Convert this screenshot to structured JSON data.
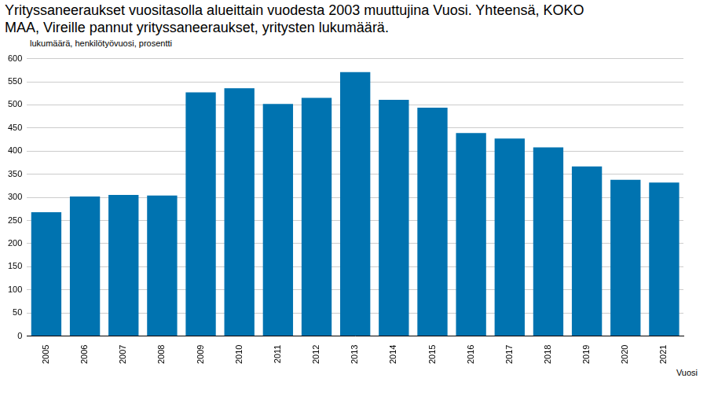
{
  "chart_data": {
    "type": "bar",
    "title": [
      "Yrityssaneeraukset vuositasolla alueittain vuodesta 2003 muuttujina Vuosi. Yhteensä, KOKO",
      "MAA, Vireille pannut yrityssaneeraukset, yritysten lukumäärä."
    ],
    "y_label": "lukumäärä, henkilötyövuosi, prosentti",
    "x_label": "Vuosi",
    "categories": [
      "2005",
      "2006",
      "2007",
      "2008",
      "2009",
      "2010",
      "2011",
      "2012",
      "2013",
      "2014",
      "2015",
      "2016",
      "2017",
      "2018",
      "2019",
      "2020",
      "2021"
    ],
    "values": [
      268,
      302,
      305,
      304,
      527,
      536,
      502,
      515,
      571,
      511,
      494,
      439,
      427,
      408,
      367,
      338,
      332
    ],
    "color": "#0073b0",
    "ylim": [
      0,
      600
    ],
    "yticks": [
      0,
      50,
      100,
      150,
      200,
      250,
      300,
      350,
      400,
      450,
      500,
      550,
      600
    ],
    "grid": true
  }
}
